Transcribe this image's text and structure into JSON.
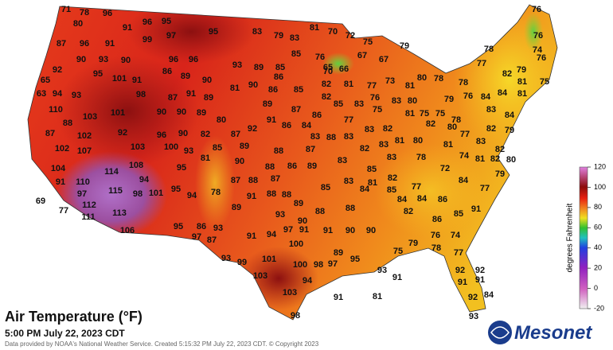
{
  "title": "Air Temperature (°F)",
  "subtitle": "5:00 PM July 22, 2023 CDT",
  "credit": "Data provided by NOAA's National Weather Service. Created 5:15:32 PM July 22, 2023 CDT. © Copyright 2023",
  "logo": "Mesonet",
  "colorbar": {
    "label": "degrees Fahrenheit",
    "lim": [
      -20,
      120
    ],
    "ticks": [
      120,
      100,
      80,
      60,
      40,
      20,
      0,
      -20
    ]
  },
  "stations": [
    71,
    78,
    96,
    95,
    96,
    80,
    91,
    87,
    96,
    91,
    99,
    97,
    95,
    83,
    79,
    83,
    81,
    70,
    72,
    75,
    79,
    78,
    76,
    76,
    74,
    90,
    93,
    90,
    96,
    96,
    93,
    89,
    85,
    76,
    65,
    66,
    67,
    67,
    77,
    76,
    85,
    95,
    101,
    91,
    86,
    89,
    90,
    86,
    70,
    73,
    81,
    80,
    78,
    82,
    79,
    65,
    92,
    63,
    94,
    93,
    98,
    87,
    91,
    89,
    81,
    90,
    86,
    85,
    82,
    81,
    77,
    76,
    83,
    80,
    79,
    76,
    84,
    81,
    75,
    81,
    84,
    78,
    82,
    110,
    101,
    103,
    90,
    90,
    89,
    89,
    87,
    85,
    83,
    75,
    81,
    75,
    75,
    78,
    83,
    84,
    88,
    80,
    91,
    86,
    84,
    86,
    77,
    87,
    102,
    92,
    96,
    90,
    82,
    87,
    92,
    83,
    82,
    82,
    80,
    82,
    79,
    77,
    83,
    88,
    83,
    102,
    107,
    103,
    100,
    93,
    85,
    89,
    88,
    87,
    82,
    83,
    81,
    80,
    81,
    83,
    82,
    81,
    90,
    88,
    86,
    89,
    83,
    85,
    83,
    78,
    72,
    74,
    81,
    82,
    80,
    104,
    108,
    95,
    91,
    110,
    114,
    94,
    87,
    88,
    87,
    83,
    81,
    82,
    84,
    79,
    97,
    115,
    98,
    101,
    95,
    94,
    78,
    91,
    88,
    88,
    85,
    84,
    85,
    77,
    84,
    84,
    86,
    77,
    69,
    112,
    77,
    111,
    113,
    89,
    93,
    89,
    90,
    88,
    88,
    82,
    86,
    85,
    91,
    106,
    95,
    86,
    93,
    97,
    87,
    91,
    94,
    97,
    91,
    91,
    90,
    90,
    79,
    76,
    74,
    78,
    75,
    89,
    100,
    93,
    99,
    101,
    100,
    98,
    97,
    95,
    77,
    93,
    91,
    92,
    92,
    91,
    91,
    103,
    94,
    103,
    92,
    84,
    91,
    81,
    98,
    93
  ]
}
